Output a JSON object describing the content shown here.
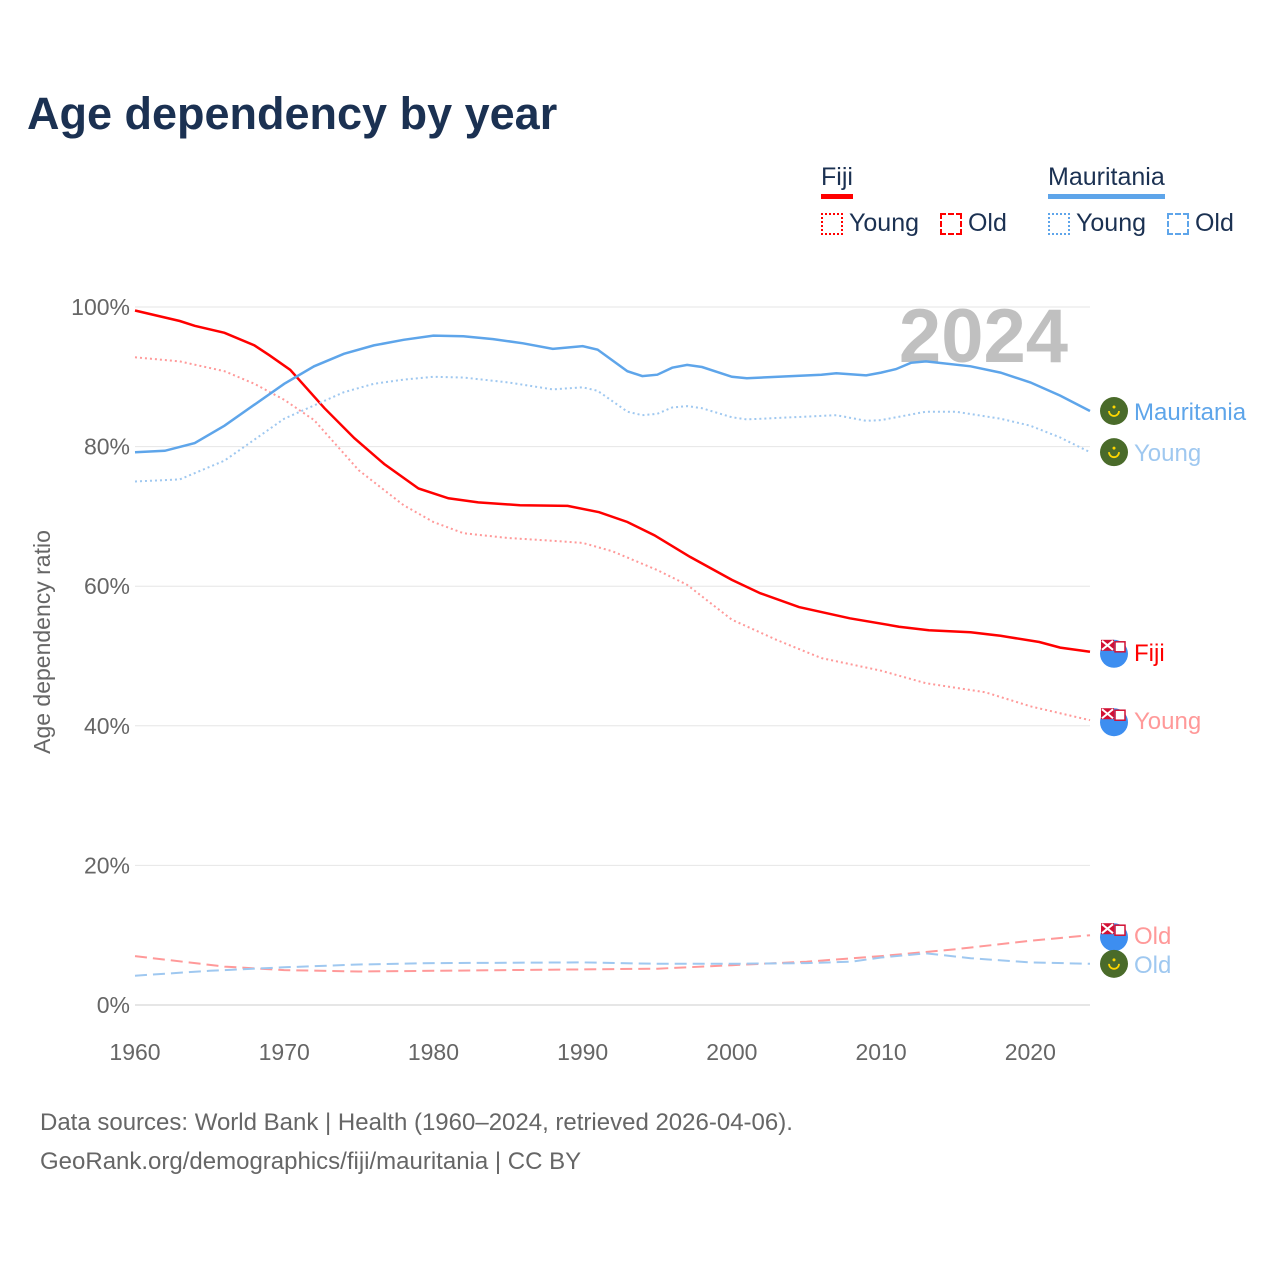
{
  "title": "Age dependency by year",
  "legend": {
    "groups": [
      {
        "name": "Fiji",
        "color": "#ff0000",
        "items": [
          "Young",
          "Old"
        ]
      },
      {
        "name": "Mauritania",
        "color": "#5ea5ea",
        "items": [
          "Young",
          "Old"
        ]
      }
    ]
  },
  "footer": {
    "line1": "Data sources: World Bank | Health (1960–2024, retrieved 2026-04-06).",
    "line2": "GeoRank.org/demographics/fiji/mauritania | CC BY"
  },
  "chart_data": {
    "type": "line",
    "year_label": "2024",
    "ylabel": "Age dependency ratio",
    "xlim": [
      1960,
      2024
    ],
    "ylim": [
      0,
      100
    ],
    "x_ticks": [
      "1960",
      "1970",
      "1980",
      "1990",
      "2000",
      "2010",
      "2020"
    ],
    "y_ticks": [
      "0%",
      "20%",
      "40%",
      "60%",
      "80%",
      "100%"
    ],
    "grid": true,
    "series": [
      {
        "name": "Fiji",
        "end_label": "Fiji",
        "country": "Fiji",
        "color": "#ff0000",
        "dash": "solid",
        "points": [
          [
            1960,
            99.5
          ],
          [
            1963,
            98
          ],
          [
            1964,
            97.3
          ],
          [
            1966,
            96.3
          ],
          [
            1968,
            94.5
          ],
          [
            1969,
            93.1
          ],
          [
            1970.4,
            91
          ],
          [
            1972.7,
            85.5
          ],
          [
            1974.7,
            81.2
          ],
          [
            1976.7,
            77.5
          ],
          [
            1979,
            74
          ],
          [
            1981,
            72.6
          ],
          [
            1983,
            72
          ],
          [
            1985.8,
            71.6
          ],
          [
            1989,
            71.5
          ],
          [
            1991.1,
            70.6
          ],
          [
            1993,
            69.2
          ],
          [
            1994.8,
            67.3
          ],
          [
            1997.2,
            64.2
          ],
          [
            2000,
            60.9
          ],
          [
            2001.9,
            59
          ],
          [
            2004.5,
            57
          ],
          [
            2007.9,
            55.4
          ],
          [
            2011.2,
            54.2
          ],
          [
            2013.2,
            53.7
          ],
          [
            2016,
            53.4
          ],
          [
            2018,
            52.9
          ],
          [
            2020.6,
            52
          ],
          [
            2022,
            51.2
          ],
          [
            2024,
            50.6
          ]
        ]
      },
      {
        "name": "Fiji Young",
        "end_label": "Young",
        "country": "Fiji",
        "color": "#ff9999",
        "dash": "dotted",
        "points": [
          [
            1960,
            92.8
          ],
          [
            1963,
            92.2
          ],
          [
            1966,
            90.8
          ],
          [
            1968,
            89
          ],
          [
            1970,
            86.7
          ],
          [
            1972,
            83.8
          ],
          [
            1975,
            76.6
          ],
          [
            1978,
            71.6
          ],
          [
            1980,
            69.2
          ],
          [
            1982,
            67.6
          ],
          [
            1985,
            66.9
          ],
          [
            1988,
            66.5
          ],
          [
            1990,
            66.2
          ],
          [
            1992,
            65
          ],
          [
            1995,
            62.3
          ],
          [
            1997,
            60.2
          ],
          [
            2000,
            55.2
          ],
          [
            2003,
            52.3
          ],
          [
            2006,
            49.7
          ],
          [
            2010,
            47.9
          ],
          [
            2013,
            46.1
          ],
          [
            2017,
            44.8
          ],
          [
            2020,
            42.8
          ],
          [
            2024,
            40.8
          ]
        ]
      },
      {
        "name": "Fiji Old",
        "end_label": "Old",
        "country": "Fiji",
        "color": "#ff9999",
        "dash": "dashed",
        "points": [
          [
            1960,
            7
          ],
          [
            1966,
            5.5
          ],
          [
            1970,
            5
          ],
          [
            1975,
            4.8
          ],
          [
            1985,
            5
          ],
          [
            1995,
            5.2
          ],
          [
            2000,
            5.7
          ],
          [
            2005,
            6.2
          ],
          [
            2010,
            7
          ],
          [
            2015,
            8
          ],
          [
            2020,
            9.2
          ],
          [
            2024,
            10
          ]
        ]
      },
      {
        "name": "Mauritania",
        "end_label": "Mauritania",
        "country": "Mauritania",
        "color": "#5ea5ea",
        "dash": "solid",
        "points": [
          [
            1960,
            79.2
          ],
          [
            1962,
            79.4
          ],
          [
            1964,
            80.5
          ],
          [
            1966,
            83
          ],
          [
            1968,
            86
          ],
          [
            1970,
            89
          ],
          [
            1972,
            91.5
          ],
          [
            1974,
            93.3
          ],
          [
            1976,
            94.5
          ],
          [
            1978,
            95.3
          ],
          [
            1980,
            95.9
          ],
          [
            1982,
            95.8
          ],
          [
            1984,
            95.4
          ],
          [
            1986,
            94.8
          ],
          [
            1988,
            94
          ],
          [
            1990,
            94.4
          ],
          [
            1991,
            93.9
          ],
          [
            1993,
            90.8
          ],
          [
            1994,
            90.1
          ],
          [
            1995,
            90.3
          ],
          [
            1996,
            91.3
          ],
          [
            1997,
            91.7
          ],
          [
            1998,
            91.4
          ],
          [
            2000,
            90
          ],
          [
            2001,
            89.8
          ],
          [
            2004,
            90.1
          ],
          [
            2006,
            90.3
          ],
          [
            2007,
            90.5
          ],
          [
            2009,
            90.2
          ],
          [
            2010,
            90.6
          ],
          [
            2011,
            91.1
          ],
          [
            2012,
            92
          ],
          [
            2013,
            92.2
          ],
          [
            2016,
            91.5
          ],
          [
            2018,
            90.6
          ],
          [
            2020,
            89.2
          ],
          [
            2022,
            87.3
          ],
          [
            2024,
            85.1
          ]
        ]
      },
      {
        "name": "Mauritania Young",
        "end_label": "Young",
        "country": "Mauritania",
        "color": "#9fc8f0",
        "dash": "dotted",
        "points": [
          [
            1960,
            75
          ],
          [
            1963,
            75.3
          ],
          [
            1966,
            78
          ],
          [
            1970,
            84
          ],
          [
            1974,
            87.8
          ],
          [
            1976,
            89
          ],
          [
            1978,
            89.6
          ],
          [
            1980,
            90
          ],
          [
            1982,
            89.9
          ],
          [
            1985,
            89.2
          ],
          [
            1988,
            88.2
          ],
          [
            1990,
            88.5
          ],
          [
            1991,
            88
          ],
          [
            1993,
            85
          ],
          [
            1994,
            84.5
          ],
          [
            1995,
            84.7
          ],
          [
            1996,
            85.6
          ],
          [
            1997,
            85.8
          ],
          [
            1998,
            85.5
          ],
          [
            2000,
            84.2
          ],
          [
            2001,
            83.9
          ],
          [
            2004,
            84.2
          ],
          [
            2007,
            84.5
          ],
          [
            2009,
            83.7
          ],
          [
            2010,
            83.8
          ],
          [
            2012,
            84.6
          ],
          [
            2013,
            85
          ],
          [
            2015,
            85
          ],
          [
            2018,
            84
          ],
          [
            2020,
            83
          ],
          [
            2022,
            81.3
          ],
          [
            2024,
            79.2
          ]
        ]
      },
      {
        "name": "Mauritania Old",
        "end_label": "Old",
        "country": "Mauritania",
        "color": "#9fc8f0",
        "dash": "dashed",
        "points": [
          [
            1960,
            4.2
          ],
          [
            1965,
            4.9
          ],
          [
            1970,
            5.4
          ],
          [
            1975,
            5.8
          ],
          [
            1980,
            6
          ],
          [
            1990,
            6.1
          ],
          [
            1995,
            5.9
          ],
          [
            2000,
            5.9
          ],
          [
            2005,
            6
          ],
          [
            2008,
            6.2
          ],
          [
            2010,
            6.8
          ],
          [
            2013,
            7.4
          ],
          [
            2016,
            6.7
          ],
          [
            2020,
            6.1
          ],
          [
            2024,
            5.9
          ]
        ]
      }
    ]
  }
}
